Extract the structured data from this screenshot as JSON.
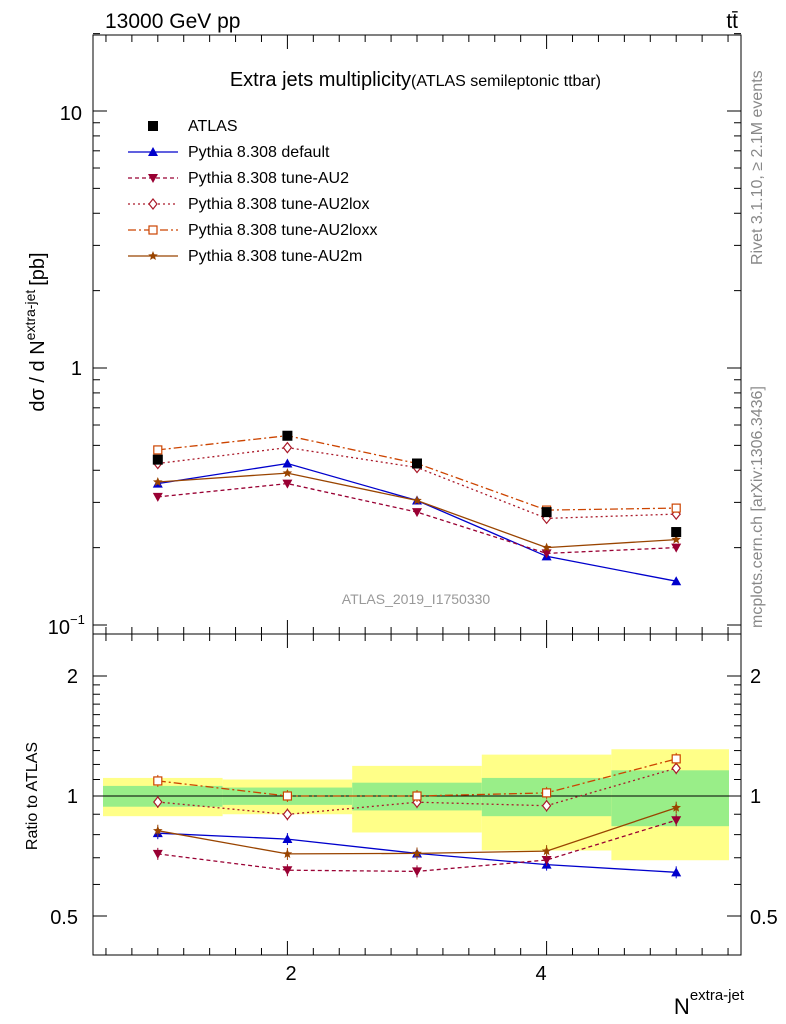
{
  "header": {
    "energy_label": "13000 GeV pp",
    "process_label": "tt̄",
    "side_top": "Rivet 3.1.10, ≥ 2.1M events",
    "side_bottom": "mcplots.cern.ch [arXiv:1306.3436]"
  },
  "main_plot": {
    "title": "Extra jets multiplicity",
    "subtitle": "(ATLAS semileptonic ttbar)",
    "ylabel": "dσ / d N",
    "ylabel_sup": "extra-jet",
    "ylabel_unit": "[pb]",
    "watermark": "ATLAS_2019_I1750330",
    "ytick_labels": {
      "t10": "10",
      "t1": "1",
      "t01": "10",
      "t01_exp": "−1"
    }
  },
  "ratio_plot": {
    "ylabel": "Ratio to ATLAS",
    "ytick_labels": [
      "2",
      "1",
      "0.5"
    ],
    "xtick_labels": [
      "2",
      "4"
    ],
    "xlabel": "N",
    "xlabel_sup": "extra-jet"
  },
  "legend": [
    "ATLAS",
    "Pythia 8.308 default",
    "Pythia 8.308 tune-AU2",
    "Pythia 8.308 tune-AU2lox",
    "Pythia 8.308 tune-AU2loxx",
    "Pythia 8.308 tune-AU2m"
  ],
  "chart_data": {
    "type": "line",
    "title": "Extra jets multiplicity",
    "subtitle": "(ATLAS semileptonic ttbar)",
    "xlabel": "N extra-jet",
    "ylabel": "dσ / d N extra-jet [pb]",
    "xlim": [
      0.5,
      5.5
    ],
    "ylim": [
      0.1,
      20
    ],
    "yscale": "log",
    "ratio_ylim": [
      0.4,
      2.4
    ],
    "x": [
      1,
      2,
      3,
      4,
      5
    ],
    "data": {
      "name": "ATLAS",
      "values": [
        0.44,
        0.545,
        0.425,
        0.275,
        0.23
      ],
      "color": "#000000",
      "stat_band": [
        0.06,
        0.05,
        0.08,
        0.11,
        0.16
      ],
      "total_band": [
        0.11,
        0.1,
        0.19,
        0.27,
        0.31
      ]
    },
    "series": [
      {
        "name": "Pythia 8.308 default",
        "values": [
          0.355,
          0.425,
          0.305,
          0.185,
          0.148
        ],
        "color": "#0000cc",
        "dash": "",
        "marker": "triangle-up"
      },
      {
        "name": "Pythia 8.308 tune-AU2",
        "values": [
          0.315,
          0.355,
          0.275,
          0.19,
          0.2
        ],
        "color": "#990033",
        "dash": "4,3",
        "marker": "triangle-down"
      },
      {
        "name": "Pythia 8.308 tune-AU2lox",
        "values": [
          0.425,
          0.49,
          0.41,
          0.26,
          0.27
        ],
        "color": "#aa1a2a",
        "dash": "2,3",
        "marker": "diamond-open"
      },
      {
        "name": "Pythia 8.308 tune-AU2loxx",
        "values": [
          0.48,
          0.545,
          0.425,
          0.28,
          0.285
        ],
        "color": "#cc4400",
        "dash": "8,3,2,3",
        "marker": "square-open"
      },
      {
        "name": "Pythia 8.308 tune-AU2m",
        "values": [
          0.36,
          0.39,
          0.305,
          0.2,
          0.215
        ],
        "color": "#994400",
        "dash": "",
        "marker": "star"
      }
    ]
  }
}
